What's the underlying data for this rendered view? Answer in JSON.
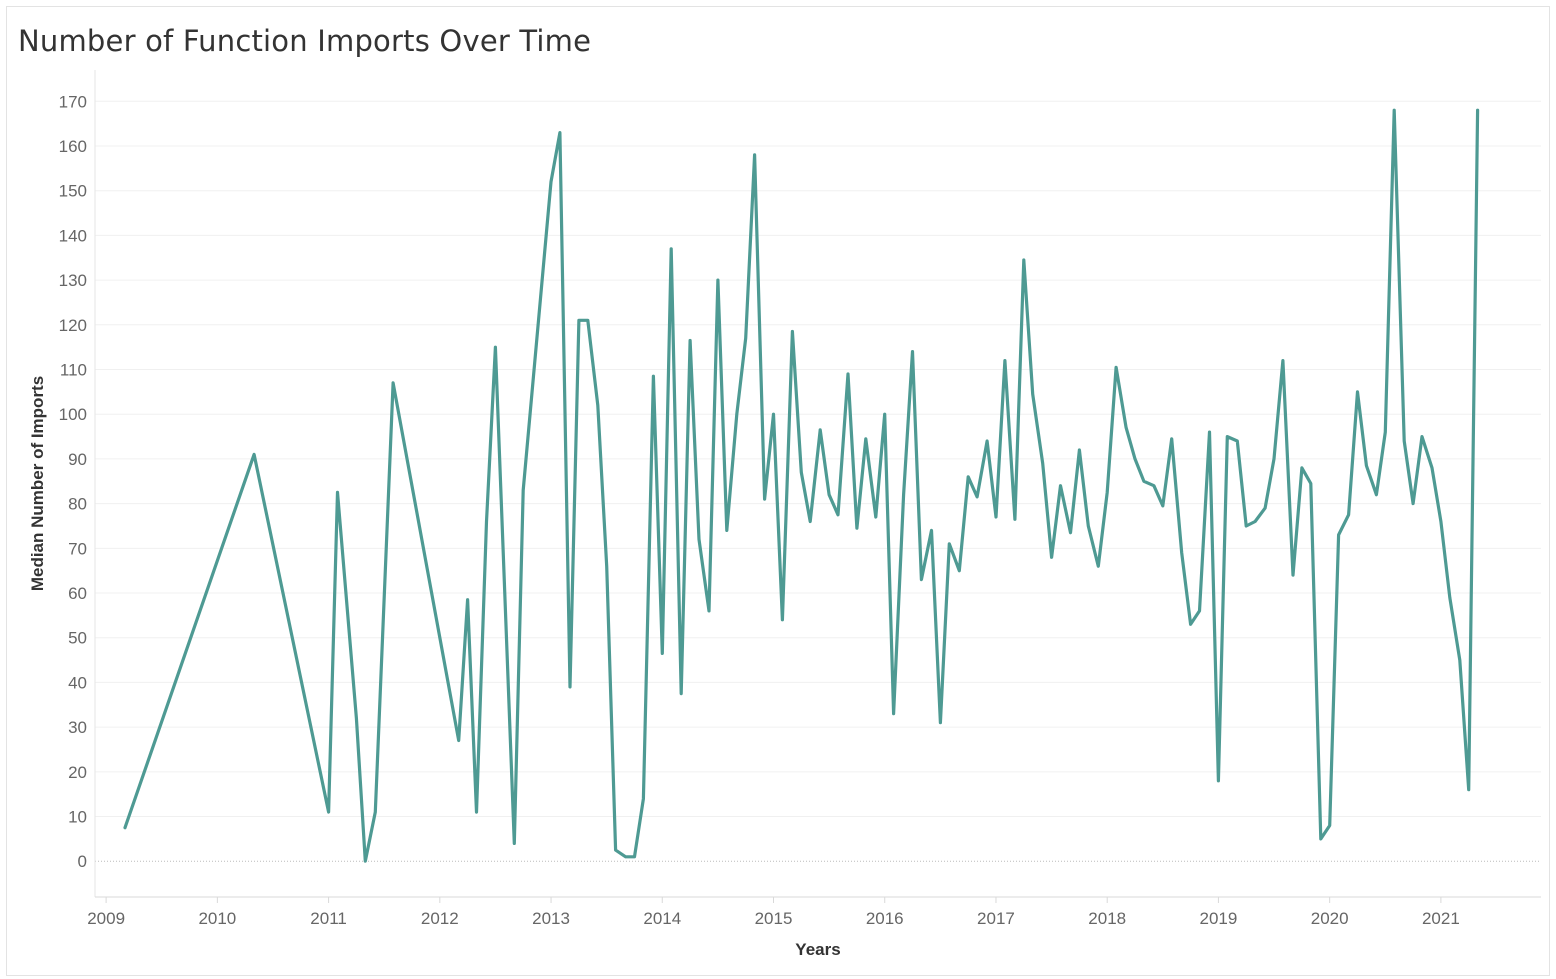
{
  "chart_data": {
    "type": "line",
    "title": "Number of Function Imports Over Time",
    "xlabel": "Years",
    "ylabel": "Median Number of Imports",
    "xlim": [
      2008.9,
      2021.9
    ],
    "ylim": [
      -8,
      177
    ],
    "x_ticks": [
      "2009",
      "2010",
      "2011",
      "2012",
      "2013",
      "2014",
      "2015",
      "2016",
      "2017",
      "2018",
      "2019",
      "2020",
      "2021"
    ],
    "y_ticks": [
      0,
      10,
      20,
      30,
      40,
      50,
      60,
      70,
      80,
      90,
      100,
      110,
      120,
      130,
      140,
      150,
      160,
      170
    ],
    "grid": true,
    "line_color": "#4e9a93",
    "series": [
      {
        "name": "Median Number of Imports",
        "x": [
          2009.17,
          2010.33,
          2011.0,
          2011.08,
          2011.25,
          2011.33,
          2011.42,
          2011.58,
          2012.17,
          2012.25,
          2012.33,
          2012.42,
          2012.5,
          2012.67,
          2012.75,
          2013.0,
          2013.08,
          2013.17,
          2013.25,
          2013.33,
          2013.42,
          2013.5,
          2013.58,
          2013.67,
          2013.75,
          2013.83,
          2013.92,
          2014.0,
          2014.08,
          2014.17,
          2014.25,
          2014.33,
          2014.42,
          2014.5,
          2014.58,
          2014.67,
          2014.75,
          2014.83,
          2014.92,
          2015.0,
          2015.08,
          2015.17,
          2015.25,
          2015.33,
          2015.42,
          2015.5,
          2015.58,
          2015.67,
          2015.75,
          2015.83,
          2015.92,
          2016.0,
          2016.08,
          2016.17,
          2016.25,
          2016.33,
          2016.42,
          2016.5,
          2016.58,
          2016.67,
          2016.75,
          2016.83,
          2016.92,
          2017.0,
          2017.08,
          2017.17,
          2017.25,
          2017.33,
          2017.42,
          2017.5,
          2017.58,
          2017.67,
          2017.75,
          2017.83,
          2017.92,
          2018.0,
          2018.08,
          2018.17,
          2018.25,
          2018.33,
          2018.42,
          2018.5,
          2018.58,
          2018.67,
          2018.75,
          2018.83,
          2018.92,
          2019.0,
          2019.08,
          2019.17,
          2019.25,
          2019.33,
          2019.42,
          2019.5,
          2019.58,
          2019.67,
          2019.75,
          2019.83,
          2019.92,
          2020.0,
          2020.08,
          2020.17,
          2020.25,
          2020.33,
          2020.42,
          2020.5,
          2020.58,
          2020.67,
          2020.75,
          2020.83,
          2020.92,
          2021.0,
          2021.08,
          2021.17,
          2021.25,
          2021.33
        ],
        "y": [
          7.5,
          91,
          11,
          82.5,
          32,
          0,
          11,
          107,
          27,
          58.5,
          11,
          76,
          115,
          4,
          83,
          152,
          163,
          39,
          121,
          121,
          102,
          66,
          2.5,
          1,
          1,
          14,
          108.5,
          46.5,
          137,
          37.5,
          116.5,
          72,
          56,
          130,
          74,
          100,
          117,
          158,
          81,
          100,
          54,
          118.5,
          87,
          76,
          96.5,
          82,
          77.5,
          109,
          74.5,
          94.5,
          77,
          100,
          33,
          82,
          114,
          63,
          74,
          31,
          71,
          65,
          86,
          81.5,
          94,
          77,
          112,
          76.5,
          134.5,
          104.5,
          89,
          68,
          84,
          73.5,
          92,
          75,
          66,
          82.5,
          110.5,
          97,
          90,
          85,
          84,
          79.5,
          94.5,
          69,
          53,
          56,
          96,
          18,
          95,
          94,
          75,
          76,
          79,
          90,
          112,
          64,
          88,
          84.5,
          5,
          8,
          73,
          77.5,
          105,
          88.5,
          82,
          96,
          168,
          94,
          80,
          95,
          88,
          76,
          59,
          45,
          16,
          168
        ]
      }
    ]
  }
}
